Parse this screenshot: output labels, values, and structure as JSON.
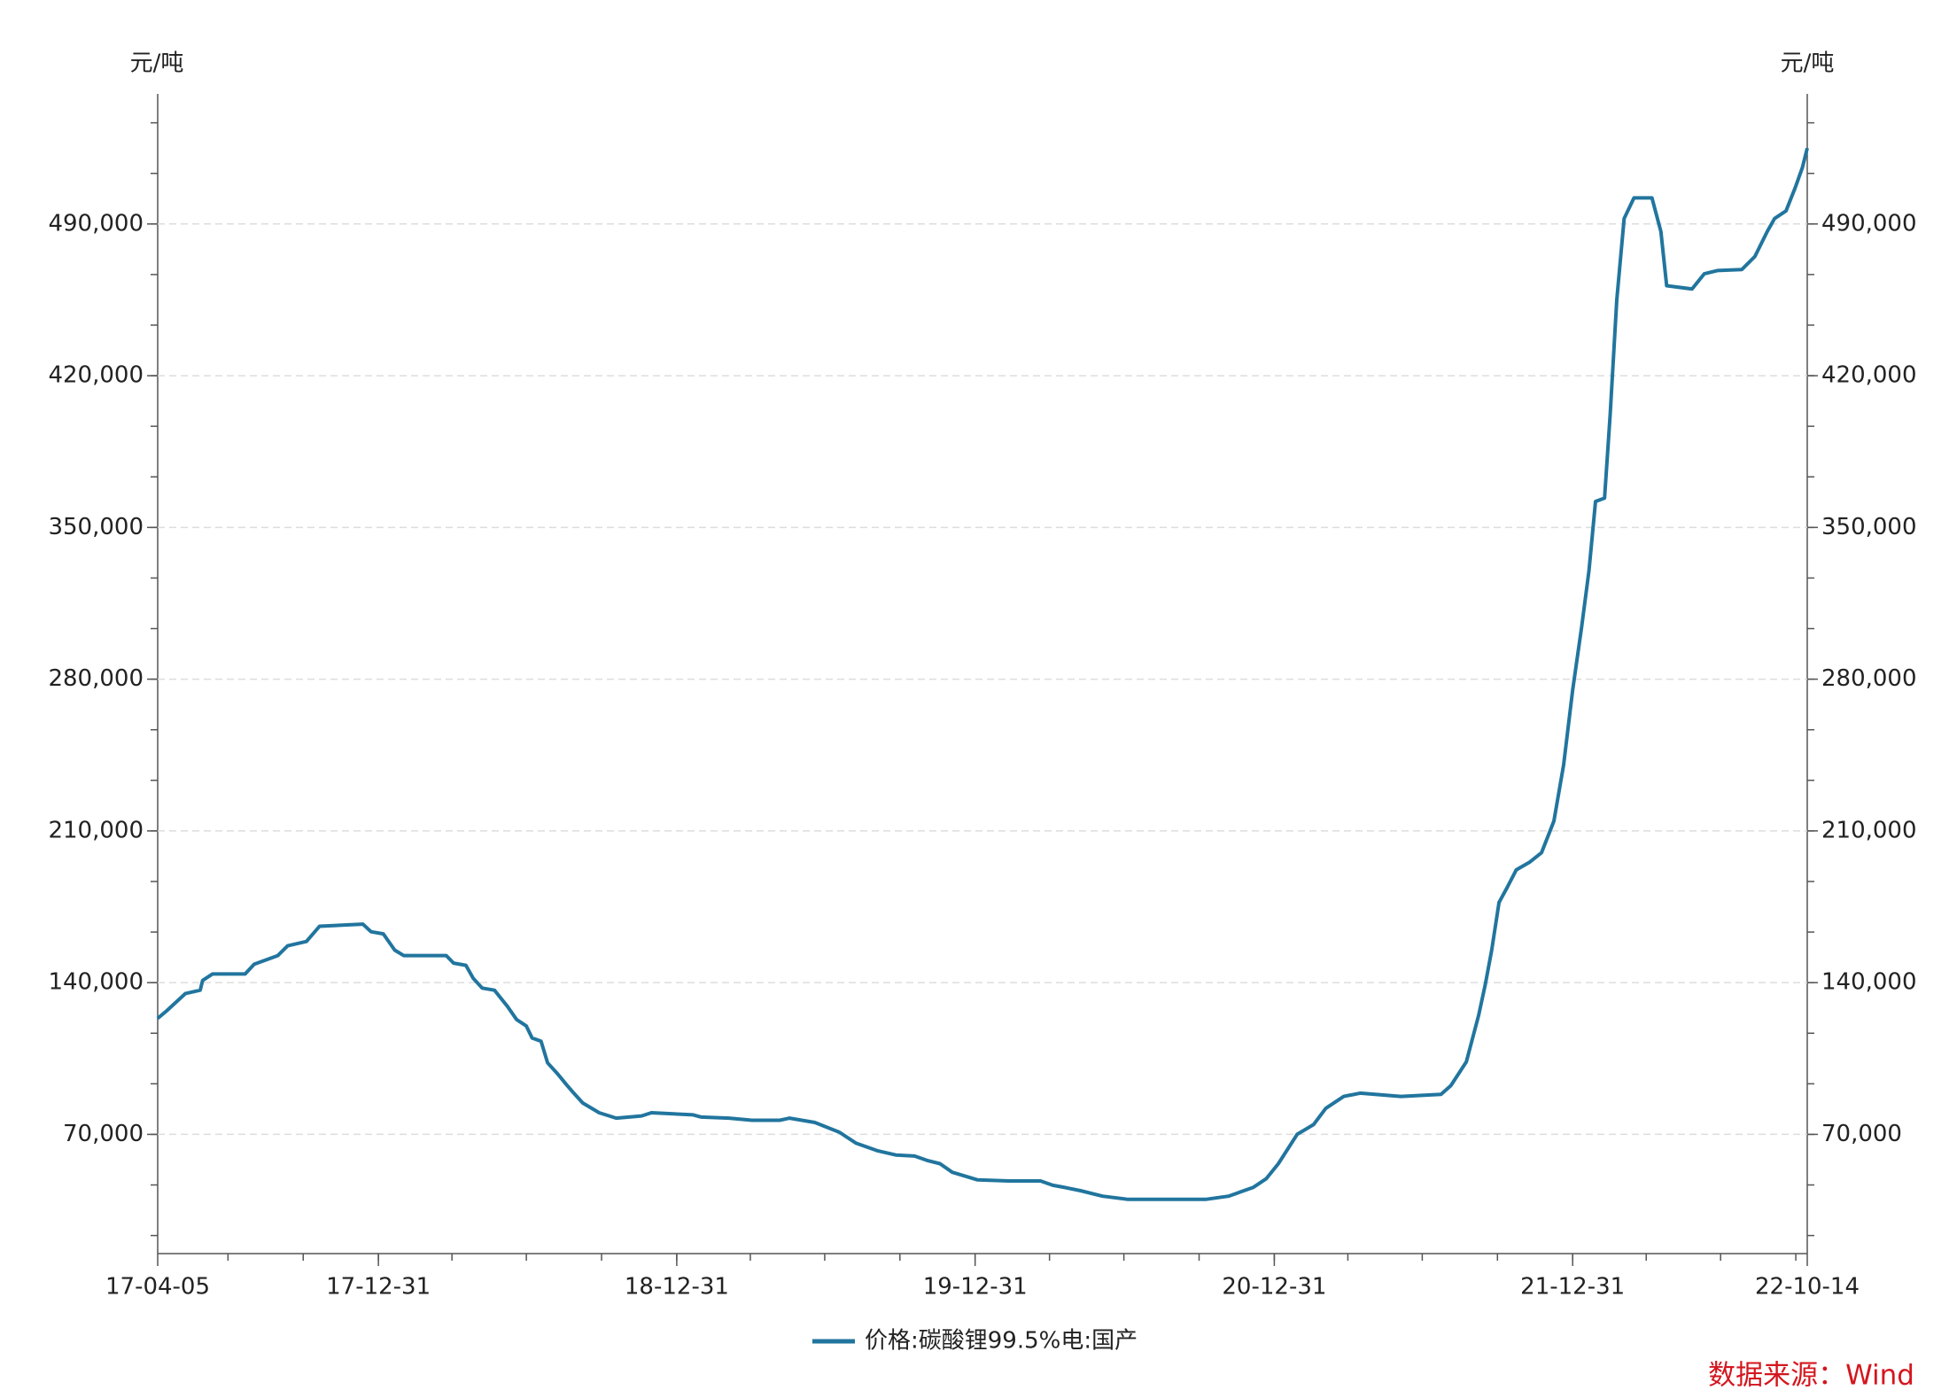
{
  "chart_data": {
    "type": "line",
    "y_label": "元/吨",
    "y2_label": "元/吨",
    "source": "数据来源：Wind",
    "x": [
      "17-04-05",
      "17-04-16",
      "17-05-09",
      "17-05-27",
      "17-05-30",
      "17-06-11",
      "17-07-21",
      "17-08-01",
      "17-08-30",
      "17-09-11",
      "17-10-04",
      "17-10-20",
      "17-12-12",
      "17-12-22",
      "18-01-06",
      "18-01-20",
      "18-01-31",
      "18-03-24",
      "18-04-02",
      "18-04-17",
      "18-04-26",
      "18-05-07",
      "18-05-22",
      "18-06-07",
      "18-06-18",
      "18-06-30",
      "18-07-07",
      "18-07-18",
      "18-07-26",
      "18-08-07",
      "18-08-18",
      "18-08-27",
      "18-09-07",
      "18-09-27",
      "18-10-18",
      "18-11-18",
      "18-11-30",
      "19-01-20",
      "19-01-30",
      "19-03-05",
      "19-04-02",
      "19-05-06",
      "19-05-18",
      "19-06-18",
      "19-07-18",
      "19-08-07",
      "19-09-02",
      "19-09-25",
      "19-10-18",
      "19-11-02",
      "19-11-18",
      "19-12-03",
      "20-01-03",
      "20-02-10",
      "20-03-20",
      "20-04-04",
      "20-04-19",
      "20-05-08",
      "20-06-04",
      "20-07-05",
      "20-10-08",
      "20-11-05",
      "20-12-05",
      "20-12-21",
      "21-01-05",
      "21-01-28",
      "21-02-17",
      "21-03-04",
      "21-03-26",
      "21-04-15",
      "21-06-04",
      "21-07-23",
      "21-08-04",
      "21-08-23",
      "21-09-07",
      "21-09-15",
      "21-09-23",
      "21-10-02",
      "21-10-12",
      "21-10-23",
      "21-11-08",
      "21-11-23",
      "21-12-08",
      "21-12-20",
      "21-12-31",
      "22-01-11",
      "22-01-20",
      "22-01-28",
      "22-02-08",
      "22-02-15",
      "22-02-23",
      "22-03-04",
      "22-03-16",
      "22-04-07",
      "22-04-18",
      "22-04-25",
      "22-05-26",
      "22-06-10",
      "22-06-26",
      "22-07-26",
      "22-08-11",
      "22-08-26",
      "22-09-04",
      "22-09-18",
      "22-09-29",
      "22-10-08",
      "22-10-14"
    ],
    "series": [
      {
        "name": "价格:碳酸锂99.5%电:国产",
        "color": "#21759e",
        "values": [
          123500,
          127000,
          135000,
          136500,
          141000,
          144000,
          144000,
          148500,
          152500,
          157000,
          159000,
          166000,
          167000,
          163500,
          162500,
          155000,
          152500,
          152500,
          149000,
          148000,
          142000,
          137500,
          136500,
          129000,
          123000,
          120000,
          114500,
          113000,
          103000,
          98000,
          93000,
          89000,
          84500,
          80000,
          77500,
          78500,
          80000,
          79000,
          78000,
          77500,
          76500,
          76500,
          77500,
          75500,
          71000,
          66000,
          62500,
          60500,
          60000,
          58000,
          56500,
          52500,
          49000,
          48500,
          48500,
          46500,
          45500,
          44000,
          41500,
          40000,
          40000,
          41500,
          45500,
          49500,
          56500,
          70000,
          74500,
          82000,
          87500,
          89000,
          87500,
          88500,
          92500,
          103500,
          125000,
          139000,
          155000,
          177000,
          184000,
          192000,
          195500,
          200000,
          214500,
          240500,
          275000,
          304000,
          330000,
          362000,
          363500,
          402500,
          455000,
          492500,
          502000,
          502000,
          486500,
          461500,
          460000,
          467000,
          468500,
          469000,
          475000,
          486500,
          492500,
          496000,
          506500,
          516000,
          525000
        ]
      }
    ],
    "xlim": [
      "17-04-05",
      "22-10-14"
    ],
    "xticks": [
      "17-04-05",
      "17-12-31",
      "18-12-31",
      "19-12-31",
      "20-12-31",
      "21-12-31",
      "22-10-14"
    ],
    "ylim": [
      15000,
      550000
    ],
    "yticks": [
      {
        "value": 70000,
        "label": "70,000"
      },
      {
        "value": 140000,
        "label": "140,000"
      },
      {
        "value": 210000,
        "label": "210,000"
      },
      {
        "value": 280000,
        "label": "280,000"
      },
      {
        "value": 350000,
        "label": "350,000"
      },
      {
        "value": 420000,
        "label": "420,000"
      },
      {
        "value": 490000,
        "label": "490,000"
      }
    ],
    "grid": true,
    "legend": "bottom"
  }
}
